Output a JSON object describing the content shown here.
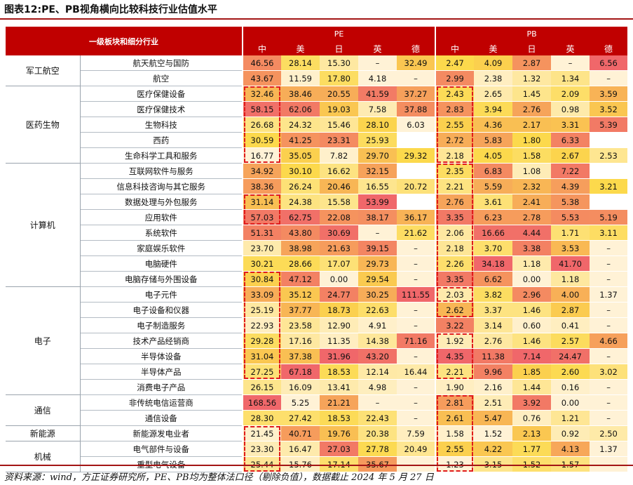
{
  "title": "图表12:PE、PB视角横向比较科技行业估值水平",
  "header": {
    "category_label": "一级板块和细分行业",
    "pe_label": "PE",
    "pb_label": "PB",
    "countries": [
      "中",
      "美",
      "日",
      "英",
      "德"
    ]
  },
  "colors": {
    "header_bg": "#c00000",
    "scale_high": "#f0676a",
    "scale_mid": "#fcd94c",
    "scale_low": "#fff2d6",
    "na_bg": "#fff2d6",
    "highlight_dash": "#e01b1b"
  },
  "groups": [
    {
      "name": "军工航空",
      "rows": [
        {
          "name": "航天航空与国防",
          "pe": [
            "46.56",
            "28.14",
            "15.30",
            "–",
            "32.49"
          ],
          "pb": [
            "2.47",
            "4.09",
            "2.87",
            "–",
            "6.56"
          ]
        },
        {
          "name": "航空",
          "pe": [
            "43.67",
            "11.59",
            "17.80",
            "4.18",
            "–"
          ],
          "pb": [
            "2.99",
            "2.38",
            "1.32",
            "1.34",
            "–"
          ]
        }
      ]
    },
    {
      "name": "医药生物",
      "rows": [
        {
          "name": "医疗保健设备",
          "pe": [
            "32.46",
            "38.46",
            "20.55",
            "41.59",
            "37.27"
          ],
          "pb": [
            "2.43",
            "2.65",
            "1.45",
            "2.09",
            "3.59"
          ]
        },
        {
          "name": "医疗保健技术",
          "pe": [
            "58.15",
            "62.06",
            "19.03",
            "7.58",
            "37.88"
          ],
          "pb": [
            "2.83",
            "3.94",
            "2.76",
            "0.98",
            "3.52"
          ]
        },
        {
          "name": "生物科技",
          "pe": [
            "26.68",
            "24.32",
            "15.46",
            "28.10",
            "6.03"
          ],
          "pb": [
            "2.55",
            "4.36",
            "2.17",
            "3.31",
            "5.39"
          ]
        },
        {
          "name": "西药",
          "pe": [
            "30.59",
            "41.25",
            "23.31",
            "25.93",
            ""
          ],
          "pb": [
            "2.72",
            "5.83",
            "1.80",
            "6.33",
            ""
          ]
        },
        {
          "name": "生命科学工具和服务",
          "pe": [
            "16.77",
            "35.05",
            "7.82",
            "29.70",
            "29.32"
          ],
          "pb": [
            "2.18",
            "4.05",
            "1.58",
            "2.67",
            "2.53"
          ]
        }
      ]
    },
    {
      "name": "计算机",
      "rows": [
        {
          "name": "互联网软件与服务",
          "pe": [
            "34.92",
            "30.10",
            "16.62",
            "32.15",
            ""
          ],
          "pb": [
            "2.35",
            "6.83",
            "1.08",
            "7.22",
            ""
          ]
        },
        {
          "name": "信息科技咨询与其它服务",
          "pe": [
            "38.36",
            "26.24",
            "20.46",
            "16.55",
            "20.72"
          ],
          "pb": [
            "2.21",
            "5.59",
            "2.32",
            "4.39",
            "3.21"
          ]
        },
        {
          "name": "数据处理与外包服务",
          "pe": [
            "31.14",
            "24.38",
            "15.58",
            "53.99",
            ""
          ],
          "pb": [
            "2.76",
            "3.61",
            "2.41",
            "5.38",
            ""
          ]
        },
        {
          "name": "应用软件",
          "pe": [
            "57.03",
            "62.75",
            "22.08",
            "38.17",
            "36.17"
          ],
          "pb": [
            "3.35",
            "6.23",
            "2.78",
            "5.53",
            "5.19"
          ]
        },
        {
          "name": "系统软件",
          "pe": [
            "51.31",
            "43.80",
            "30.69",
            "–",
            "21.62"
          ],
          "pb": [
            "2.06",
            "16.66",
            "4.44",
            "1.71",
            "3.11"
          ]
        },
        {
          "name": "家庭娱乐软件",
          "pe": [
            "23.70",
            "38.98",
            "21.63",
            "39.15",
            "–"
          ],
          "pb": [
            "2.18",
            "3.70",
            "3.38",
            "3.53",
            "–"
          ]
        },
        {
          "name": "电脑硬件",
          "pe": [
            "30.21",
            "28.66",
            "17.07",
            "29.73",
            "–"
          ],
          "pb": [
            "2.26",
            "34.18",
            "1.18",
            "41.70",
            "–"
          ]
        },
        {
          "name": "电脑存储与外围设备",
          "pe": [
            "30.84",
            "47.12",
            "0.00",
            "29.54",
            "–"
          ],
          "pb": [
            "3.35",
            "6.62",
            "0.00",
            "1.18",
            "–"
          ]
        }
      ]
    },
    {
      "name": "电子",
      "rows": [
        {
          "name": "电子元件",
          "pe": [
            "33.09",
            "35.12",
            "24.77",
            "30.25",
            "111.55"
          ],
          "pb": [
            "2.03",
            "3.82",
            "2.96",
            "4.00",
            "1.37"
          ]
        },
        {
          "name": "电子设备和仪器",
          "pe": [
            "25.19",
            "37.77",
            "18.73",
            "22.63",
            "–"
          ],
          "pb": [
            "2.62",
            "3.37",
            "1.46",
            "2.87",
            "–"
          ]
        },
        {
          "name": "电子制造服务",
          "pe": [
            "22.93",
            "23.58",
            "12.90",
            "4.91",
            "–"
          ],
          "pb": [
            "3.22",
            "3.14",
            "0.60",
            "0.41",
            "–"
          ]
        },
        {
          "name": "技术产品经销商",
          "pe": [
            "29.28",
            "17.16",
            "11.35",
            "14.38",
            "71.16"
          ],
          "pb": [
            "1.92",
            "2.76",
            "1.46",
            "2.57",
            "4.66"
          ]
        },
        {
          "name": "半导体设备",
          "pe": [
            "31.04",
            "37.38",
            "31.96",
            "43.20",
            "–"
          ],
          "pb": [
            "4.35",
            "11.38",
            "7.14",
            "24.47",
            "–"
          ]
        },
        {
          "name": "半导体产品",
          "pe": [
            "27.25",
            "67.18",
            "18.53",
            "12.14",
            "16.44"
          ],
          "pb": [
            "2.21",
            "9.96",
            "1.85",
            "2.60",
            "3.02"
          ]
        },
        {
          "name": "消费电子产品",
          "pe": [
            "26.15",
            "16.09",
            "13.41",
            "4.98",
            "–"
          ],
          "pb": [
            "1.90",
            "2.16",
            "1.44",
            "0.16",
            "–"
          ]
        }
      ]
    },
    {
      "name": "通信",
      "rows": [
        {
          "name": "非传统电信运营商",
          "pe": [
            "168.56",
            "5.25",
            "21.21",
            "–",
            "–"
          ],
          "pb": [
            "2.81",
            "2.51",
            "3.92",
            "0.00",
            "–"
          ]
        },
        {
          "name": "通信设备",
          "pe": [
            "28.30",
            "27.42",
            "18.53",
            "22.43",
            "–"
          ],
          "pb": [
            "2.61",
            "5.47",
            "0.76",
            "1.21",
            "–"
          ]
        }
      ]
    },
    {
      "name": "新能源",
      "rows": [
        {
          "name": "新能源发电业者",
          "pe": [
            "21.45",
            "40.71",
            "19.76",
            "20.38",
            "7.59"
          ],
          "pb": [
            "1.58",
            "1.52",
            "2.13",
            "0.92",
            "2.50"
          ]
        }
      ]
    },
    {
      "name": "机械",
      "rows": [
        {
          "name": "电气部件与设备",
          "pe": [
            "23.30",
            "16.47",
            "27.03",
            "27.78",
            "20.49"
          ],
          "pb": [
            "2.55",
            "4.22",
            "1.77",
            "4.13",
            "1.37"
          ]
        },
        {
          "name": "重型电气设备",
          "pe": [
            "25.44",
            "15.76",
            "17.14",
            "35.67",
            "–"
          ],
          "pb": [
            "1.23",
            "3.15",
            "1.52",
            "1.57",
            "–"
          ]
        }
      ]
    }
  ],
  "highlight_boxes": [
    {
      "metric": "pe",
      "first_row": 2,
      "last_row": 6
    },
    {
      "metric": "pe",
      "first_row": 9,
      "last_row": 10
    },
    {
      "metric": "pe",
      "first_row": 14,
      "last_row": 20
    },
    {
      "metric": "pe",
      "first_row": 24,
      "last_row": 26
    },
    {
      "metric": "pb",
      "first_row": 2,
      "last_row": 6
    },
    {
      "metric": "pb",
      "first_row": 7,
      "last_row": 15
    },
    {
      "metric": "pb",
      "first_row": 15,
      "last_row": 16
    },
    {
      "metric": "pb",
      "first_row": 18,
      "last_row": 20
    },
    {
      "metric": "pb",
      "first_row": 22,
      "last_row": 26
    }
  ],
  "footer": "资料来源：wind，方正证券研究所，PE、PB均为整体法口径（剔除负值），数据截止 2024 年 5 月 27 日"
}
